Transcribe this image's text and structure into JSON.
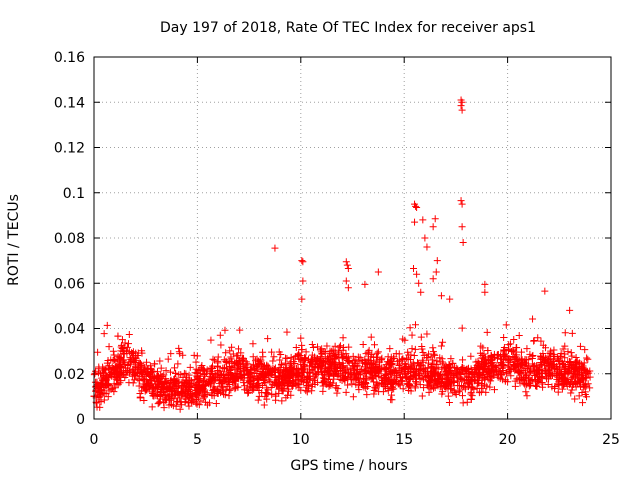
{
  "chart_data": {
    "type": "scatter",
    "title": "Day 197 of 2018, Rate Of TEC Index for receiver aps1",
    "xlabel": "GPS time / hours",
    "ylabel": "ROTI / TECUs",
    "xlim": [
      0,
      25
    ],
    "ylim": [
      0,
      0.16
    ],
    "x_ticks": [
      "0",
      "5",
      "10",
      "15",
      "20",
      "25"
    ],
    "y_ticks": [
      "0",
      "0.02",
      "0.04",
      "0.06",
      "0.08",
      "0.1",
      "0.12",
      "0.14",
      "0.16"
    ],
    "grid": true,
    "marker": "+",
    "colors": {
      "points": "#ff0000",
      "axis": "#000000",
      "grid": "#a0a0a0"
    },
    "baseline_profile": [
      [
        0.0,
        0.013
      ],
      [
        0.5,
        0.016
      ],
      [
        1.0,
        0.02
      ],
      [
        1.5,
        0.025
      ],
      [
        2.0,
        0.022
      ],
      [
        2.5,
        0.017
      ],
      [
        3.0,
        0.014
      ],
      [
        4.0,
        0.013
      ],
      [
        5.0,
        0.014
      ],
      [
        6.0,
        0.017
      ],
      [
        7.0,
        0.021
      ],
      [
        8.0,
        0.019
      ],
      [
        9.0,
        0.018
      ],
      [
        10.0,
        0.022
      ],
      [
        11.0,
        0.024
      ],
      [
        12.0,
        0.022
      ],
      [
        13.0,
        0.021
      ],
      [
        14.0,
        0.02
      ],
      [
        15.0,
        0.02
      ],
      [
        16.0,
        0.022
      ],
      [
        17.0,
        0.019
      ],
      [
        18.0,
        0.016
      ],
      [
        19.0,
        0.022
      ],
      [
        20.0,
        0.025
      ],
      [
        21.0,
        0.021
      ],
      [
        22.0,
        0.023
      ],
      [
        23.0,
        0.02
      ],
      [
        24.0,
        0.016
      ]
    ],
    "notable_points": [
      [
        8.75,
        0.0755
      ],
      [
        10.05,
        0.07
      ],
      [
        10.1,
        0.0695
      ],
      [
        10.1,
        0.061
      ],
      [
        10.05,
        0.053
      ],
      [
        12.2,
        0.0695
      ],
      [
        12.25,
        0.068
      ],
      [
        12.3,
        0.0665
      ],
      [
        12.2,
        0.061
      ],
      [
        12.3,
        0.058
      ],
      [
        13.1,
        0.0595
      ],
      [
        13.75,
        0.065
      ],
      [
        15.5,
        0.095
      ],
      [
        15.55,
        0.094
      ],
      [
        15.6,
        0.0935
      ],
      [
        15.5,
        0.087
      ],
      [
        15.45,
        0.0665
      ],
      [
        15.6,
        0.064
      ],
      [
        15.7,
        0.06
      ],
      [
        15.8,
        0.056
      ],
      [
        15.9,
        0.088
      ],
      [
        16.0,
        0.08
      ],
      [
        16.1,
        0.076
      ],
      [
        16.5,
        0.0885
      ],
      [
        16.4,
        0.085
      ],
      [
        16.6,
        0.07
      ],
      [
        16.55,
        0.065
      ],
      [
        16.4,
        0.062
      ],
      [
        16.8,
        0.0545
      ],
      [
        17.2,
        0.053
      ],
      [
        17.75,
        0.141
      ],
      [
        17.8,
        0.14
      ],
      [
        17.75,
        0.1385
      ],
      [
        17.8,
        0.1365
      ],
      [
        17.75,
        0.0965
      ],
      [
        17.8,
        0.095
      ],
      [
        17.8,
        0.085
      ],
      [
        17.85,
        0.078
      ],
      [
        18.9,
        0.0595
      ],
      [
        18.9,
        0.056
      ],
      [
        21.8,
        0.0565
      ],
      [
        23.0,
        0.048
      ]
    ]
  }
}
